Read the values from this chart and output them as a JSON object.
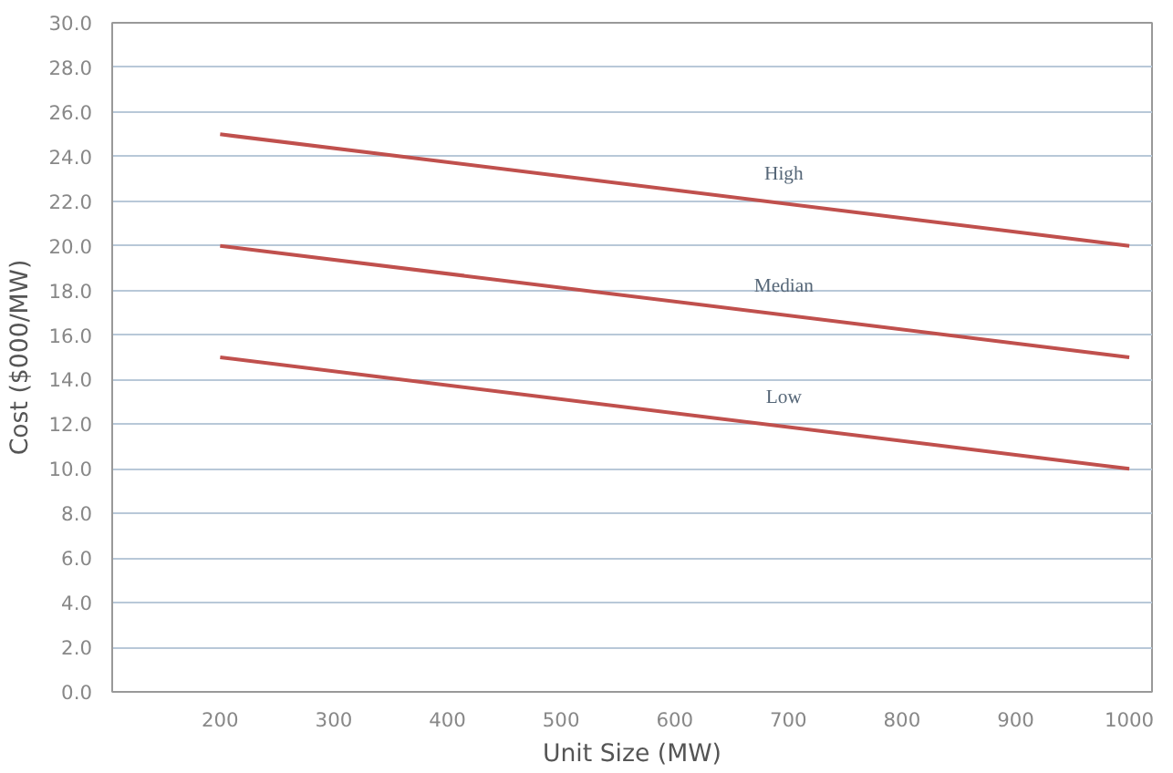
{
  "chart_data": {
    "type": "line",
    "xlabel": "Unit Size (MW)",
    "ylabel": "Cost ($000/MW)",
    "x": [
      200,
      1000
    ],
    "series": [
      {
        "name": "High",
        "color": "#c0504d",
        "values": [
          25.0,
          20.0
        ]
      },
      {
        "name": "Median",
        "color": "#c0504d",
        "values": [
          20.0,
          15.0
        ]
      },
      {
        "name": "Low",
        "color": "#c0504d",
        "values": [
          15.0,
          10.0
        ]
      }
    ],
    "xlim": [
      105,
      1020
    ],
    "ylim": [
      0,
      30
    ],
    "xticks": [
      200,
      300,
      400,
      500,
      600,
      700,
      800,
      900,
      1000
    ],
    "yticks": [
      {
        "value": 0,
        "label": "0.0"
      },
      {
        "value": 2,
        "label": "2.0"
      },
      {
        "value": 4,
        "label": "4.0"
      },
      {
        "value": 6,
        "label": "6.0"
      },
      {
        "value": 8,
        "label": "8.0"
      },
      {
        "value": 10,
        "label": "10.0"
      },
      {
        "value": 12,
        "label": "12.0"
      },
      {
        "value": 14,
        "label": "14.0"
      },
      {
        "value": 16,
        "label": "16.0"
      },
      {
        "value": 18,
        "label": "18.0"
      },
      {
        "value": 20,
        "label": "20.0"
      },
      {
        "value": 22,
        "label": "22.0"
      },
      {
        "value": 24,
        "label": "24.0"
      },
      {
        "value": 26,
        "label": "26.0"
      },
      {
        "value": 28,
        "label": "28.0"
      },
      {
        "value": 30,
        "label": "30.0"
      }
    ],
    "grid": "y",
    "line_style": "solid",
    "marker": "none"
  }
}
